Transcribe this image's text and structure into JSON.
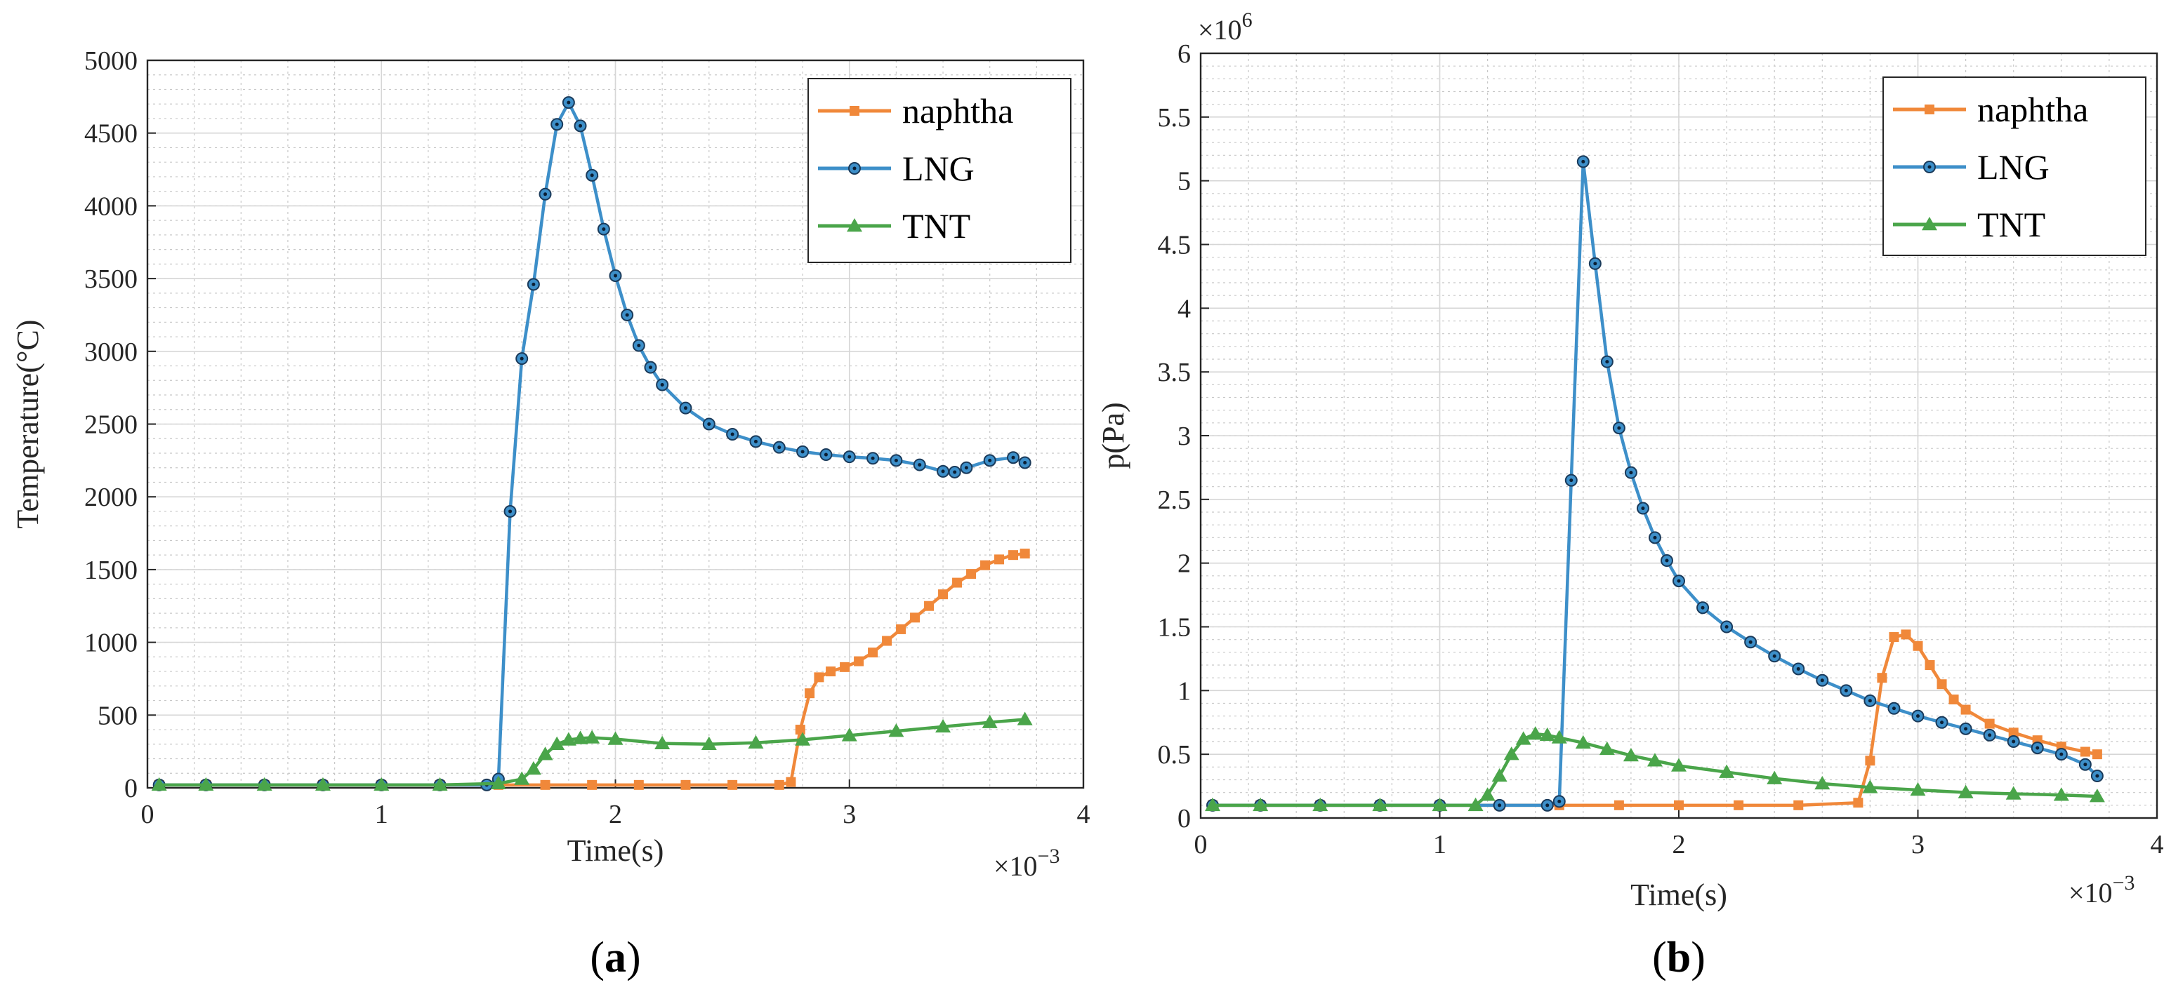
{
  "chart_data": [
    {
      "type": "line",
      "panel_label": "a",
      "xlabel": "Time(s)",
      "ylabel": "Temperature(°C)",
      "xlim": [
        0,
        4
      ],
      "ylim": [
        0,
        5000
      ],
      "x_ticks": [
        "0",
        "1",
        "2",
        "3",
        "4"
      ],
      "y_ticks": [
        "0",
        "500",
        "1000",
        "1500",
        "2000",
        "2500",
        "3000",
        "3500",
        "4000",
        "4500",
        "5000"
      ],
      "x_multiplier": "×10",
      "x_multiplier_exp": "−3",
      "x_scale": 0.001,
      "grid": true,
      "legend_position": "top-right",
      "series": [
        {
          "name": "naphtha",
          "color": "#f0883a",
          "marker": "square",
          "x": [
            0.05,
            0.25,
            0.5,
            0.75,
            1.0,
            1.25,
            1.5,
            1.7,
            1.9,
            2.1,
            2.3,
            2.5,
            2.7,
            2.75,
            2.79,
            2.83,
            2.87,
            2.92,
            2.98,
            3.04,
            3.1,
            3.16,
            3.22,
            3.28,
            3.34,
            3.4,
            3.46,
            3.52,
            3.58,
            3.64,
            3.7,
            3.75
          ],
          "y": [
            20,
            20,
            20,
            20,
            20,
            20,
            20,
            20,
            20,
            20,
            20,
            20,
            20,
            40,
            400,
            650,
            760,
            800,
            830,
            870,
            930,
            1010,
            1090,
            1170,
            1250,
            1330,
            1410,
            1470,
            1530,
            1570,
            1600,
            1610
          ]
        },
        {
          "name": "LNG",
          "color": "#3d8fc9",
          "marker": "circle",
          "x": [
            0.05,
            0.25,
            0.5,
            0.75,
            1.0,
            1.25,
            1.45,
            1.5,
            1.55,
            1.6,
            1.65,
            1.7,
            1.75,
            1.8,
            1.85,
            1.9,
            1.95,
            2.0,
            2.05,
            2.1,
            2.15,
            2.2,
            2.3,
            2.4,
            2.5,
            2.6,
            2.7,
            2.8,
            2.9,
            3.0,
            3.1,
            3.2,
            3.3,
            3.4,
            3.45,
            3.5,
            3.6,
            3.7,
            3.75
          ],
          "y": [
            20,
            20,
            20,
            20,
            20,
            20,
            20,
            60,
            1900,
            2950,
            3460,
            4080,
            4560,
            4710,
            4550,
            4210,
            3840,
            3520,
            3250,
            3040,
            2890,
            2770,
            2610,
            2500,
            2430,
            2380,
            2340,
            2310,
            2290,
            2275,
            2265,
            2250,
            2220,
            2175,
            2170,
            2200,
            2250,
            2270,
            2235
          ]
        },
        {
          "name": "TNT",
          "color": "#4aa54a",
          "marker": "triangle",
          "x": [
            0.05,
            0.25,
            0.5,
            0.75,
            1.0,
            1.25,
            1.5,
            1.6,
            1.65,
            1.7,
            1.75,
            1.8,
            1.85,
            1.9,
            2.0,
            2.2,
            2.4,
            2.6,
            2.8,
            3.0,
            3.2,
            3.4,
            3.6,
            3.75
          ],
          "y": [
            20,
            20,
            20,
            20,
            20,
            20,
            30,
            60,
            130,
            230,
            300,
            330,
            340,
            345,
            335,
            305,
            300,
            310,
            330,
            360,
            390,
            420,
            450,
            470
          ]
        }
      ]
    },
    {
      "type": "line",
      "panel_label": "b",
      "xlabel": "Time(s)",
      "ylabel": "p(Pa)",
      "xlim": [
        0,
        4
      ],
      "ylim": [
        0,
        6
      ],
      "x_ticks": [
        "0",
        "1",
        "2",
        "3",
        "4"
      ],
      "y_ticks": [
        "0",
        "0.5",
        "1",
        "1.5",
        "2",
        "2.5",
        "3",
        "3.5",
        "4",
        "4.5",
        "5",
        "5.5",
        "6"
      ],
      "x_multiplier": "×10",
      "x_multiplier_exp": "−3",
      "x_scale": 0.001,
      "y_multiplier": "×10",
      "y_multiplier_exp": "6",
      "y_scale": 1000000,
      "grid": true,
      "legend_position": "top-right",
      "series": [
        {
          "name": "naphtha",
          "color": "#f0883a",
          "marker": "square",
          "x": [
            0.05,
            0.25,
            0.5,
            0.75,
            1.0,
            1.25,
            1.5,
            1.75,
            2.0,
            2.25,
            2.5,
            2.75,
            2.8,
            2.85,
            2.9,
            2.95,
            3.0,
            3.05,
            3.1,
            3.15,
            3.2,
            3.3,
            3.4,
            3.5,
            3.6,
            3.7,
            3.75
          ],
          "y": [
            0.1,
            0.1,
            0.1,
            0.1,
            0.1,
            0.1,
            0.1,
            0.1,
            0.1,
            0.1,
            0.1,
            0.12,
            0.45,
            1.1,
            1.42,
            1.44,
            1.35,
            1.2,
            1.05,
            0.93,
            0.85,
            0.74,
            0.67,
            0.61,
            0.56,
            0.52,
            0.5
          ]
        },
        {
          "name": "LNG",
          "color": "#3d8fc9",
          "marker": "circle",
          "x": [
            0.05,
            0.25,
            0.5,
            0.75,
            1.0,
            1.25,
            1.45,
            1.5,
            1.55,
            1.6,
            1.65,
            1.7,
            1.75,
            1.8,
            1.85,
            1.9,
            1.95,
            2.0,
            2.1,
            2.2,
            2.3,
            2.4,
            2.5,
            2.6,
            2.7,
            2.8,
            2.9,
            3.0,
            3.1,
            3.2,
            3.3,
            3.4,
            3.5,
            3.6,
            3.7,
            3.75
          ],
          "y": [
            0.1,
            0.1,
            0.1,
            0.1,
            0.1,
            0.1,
            0.1,
            0.13,
            2.65,
            5.15,
            4.35,
            3.58,
            3.06,
            2.71,
            2.43,
            2.2,
            2.02,
            1.86,
            1.65,
            1.5,
            1.38,
            1.27,
            1.17,
            1.08,
            1.0,
            0.92,
            0.86,
            0.8,
            0.75,
            0.7,
            0.65,
            0.6,
            0.55,
            0.5,
            0.42,
            0.33
          ]
        },
        {
          "name": "TNT",
          "color": "#4aa54a",
          "marker": "triangle",
          "x": [
            0.05,
            0.25,
            0.5,
            0.75,
            1.0,
            1.15,
            1.2,
            1.25,
            1.3,
            1.35,
            1.4,
            1.45,
            1.5,
            1.6,
            1.7,
            1.8,
            1.9,
            2.0,
            2.2,
            2.4,
            2.6,
            2.8,
            3.0,
            3.2,
            3.4,
            3.6,
            3.75
          ],
          "y": [
            0.1,
            0.1,
            0.1,
            0.1,
            0.1,
            0.1,
            0.18,
            0.33,
            0.5,
            0.62,
            0.66,
            0.65,
            0.63,
            0.59,
            0.54,
            0.49,
            0.45,
            0.41,
            0.36,
            0.31,
            0.27,
            0.24,
            0.22,
            0.2,
            0.19,
            0.18,
            0.17
          ]
        }
      ]
    }
  ]
}
